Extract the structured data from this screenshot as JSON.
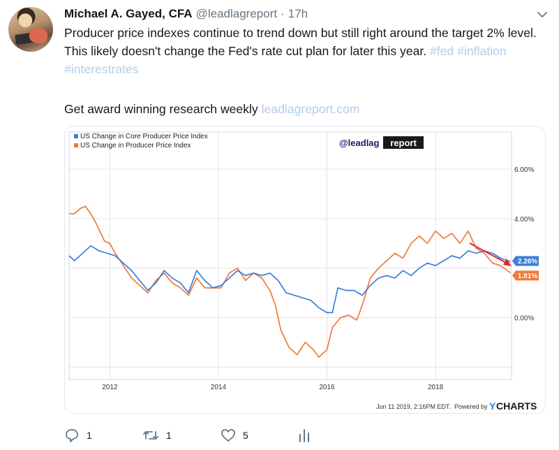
{
  "tweet": {
    "name": "Michael A. Gayed, CFA",
    "handle": "@leadlagreport",
    "dot": "·",
    "time": "17h",
    "text_main": "Producer price indexes continue to trend down but still right around the target 2% level. This likely doesn't change the Fed's rate cut plan for later this year.",
    "hashtag_fed": "#fed",
    "hashtag_inflation": "#inflation",
    "hashtag_interestrates": "#interestrates",
    "text_research": "Get award winning research weekly",
    "link": "leadlagreport.com"
  },
  "actions": {
    "reply_count": "1",
    "retweet_count": "1",
    "like_count": "5"
  },
  "chart": {
    "watermark_prefix": "@leadlag",
    "watermark_suffix": "report",
    "timestamp": "Jun 11 2019, 2:16PM EDT.",
    "powered_by": "Powered by",
    "brand_y": "Y",
    "brand_rest": "CHARTS",
    "colors": {
      "core": "#3b7fd9",
      "ppi": "#ef7b3c",
      "arrow": "#e02a2a",
      "grid": "#e3e3e3"
    }
  },
  "chart_data": {
    "type": "line",
    "legend_placement": "top-left",
    "series": [
      {
        "name": "US Change in Core Producer Price Index",
        "x": [
          2011.25,
          2011.35,
          2011.5,
          2011.65,
          2011.8,
          2011.95,
          2012.1,
          2012.25,
          2012.4,
          2012.55,
          2012.7,
          2012.85,
          2013.0,
          2013.15,
          2013.3,
          2013.45,
          2013.6,
          2013.75,
          2013.9,
          2014.05,
          2014.2,
          2014.35,
          2014.5,
          2014.65,
          2014.8,
          2014.95,
          2015.1,
          2015.25,
          2015.4,
          2015.55,
          2015.7,
          2015.85,
          2016.0,
          2016.1,
          2016.2,
          2016.35,
          2016.5,
          2016.65,
          2016.8,
          2016.95,
          2017.1,
          2017.25,
          2017.4,
          2017.55,
          2017.7,
          2017.85,
          2018.0,
          2018.15,
          2018.3,
          2018.45,
          2018.6,
          2018.75,
          2018.9,
          2019.05,
          2019.2,
          2019.38
        ],
        "values": [
          2.5,
          2.3,
          2.6,
          2.9,
          2.7,
          2.6,
          2.5,
          2.2,
          1.9,
          1.5,
          1.1,
          1.4,
          1.9,
          1.6,
          1.4,
          1.0,
          1.9,
          1.5,
          1.2,
          1.3,
          1.6,
          1.9,
          1.7,
          1.8,
          1.7,
          1.8,
          1.5,
          1.0,
          0.9,
          0.8,
          0.7,
          0.4,
          0.2,
          0.2,
          1.2,
          1.1,
          1.1,
          0.9,
          1.3,
          1.6,
          1.7,
          1.6,
          1.9,
          1.7,
          2.0,
          2.2,
          2.1,
          2.3,
          2.5,
          2.4,
          2.7,
          2.6,
          2.7,
          2.6,
          2.4,
          2.26
        ]
      },
      {
        "name": "US Change in Producer Price Index",
        "x": [
          2011.25,
          2011.35,
          2011.45,
          2011.55,
          2011.65,
          2011.75,
          2011.9,
          2012.0,
          2012.1,
          2012.25,
          2012.4,
          2012.55,
          2012.7,
          2012.85,
          2013.0,
          2013.15,
          2013.3,
          2013.45,
          2013.6,
          2013.75,
          2013.9,
          2014.05,
          2014.2,
          2014.35,
          2014.5,
          2014.65,
          2014.8,
          2014.95,
          2015.05,
          2015.15,
          2015.3,
          2015.45,
          2015.6,
          2015.75,
          2015.85,
          2016.0,
          2016.1,
          2016.25,
          2016.4,
          2016.55,
          2016.65,
          2016.8,
          2016.95,
          2017.1,
          2017.25,
          2017.4,
          2017.55,
          2017.7,
          2017.85,
          2018.0,
          2018.15,
          2018.3,
          2018.45,
          2018.6,
          2018.75,
          2018.9,
          2019.05,
          2019.2,
          2019.38
        ],
        "values": [
          4.2,
          4.2,
          4.4,
          4.5,
          4.2,
          3.8,
          3.1,
          3.0,
          2.6,
          2.1,
          1.6,
          1.3,
          1.0,
          1.5,
          1.8,
          1.4,
          1.2,
          0.9,
          1.6,
          1.2,
          1.2,
          1.2,
          1.8,
          2.0,
          1.5,
          1.8,
          1.6,
          1.1,
          0.5,
          -0.5,
          -1.2,
          -1.5,
          -1.0,
          -1.3,
          -1.6,
          -1.3,
          -0.4,
          0.0,
          0.1,
          -0.1,
          0.5,
          1.6,
          2.0,
          2.3,
          2.6,
          2.4,
          3.0,
          3.3,
          3.0,
          3.5,
          3.2,
          3.4,
          3.0,
          3.5,
          2.8,
          2.6,
          2.2,
          2.1,
          1.81
        ]
      }
    ],
    "last_values": [
      {
        "series": "US Change in Core Producer Price Index",
        "label": "2.26%"
      },
      {
        "series": "US Change in Producer Price Index",
        "label": "1.81%"
      }
    ],
    "y_ticks": [
      {
        "value": 6,
        "label": "6.00%"
      },
      {
        "value": 4,
        "label": "4.00%"
      },
      {
        "value": 0,
        "label": "0.00%"
      }
    ],
    "x_ticks": [
      {
        "value": 2012,
        "label": "2012"
      },
      {
        "value": 2014,
        "label": "2014"
      },
      {
        "value": 2016,
        "label": "2016"
      },
      {
        "value": 2018,
        "label": "2018"
      }
    ],
    "xlim": [
      2011.25,
      2019.4
    ],
    "ylim": [
      -2.5,
      7.5
    ],
    "grid": true
  }
}
